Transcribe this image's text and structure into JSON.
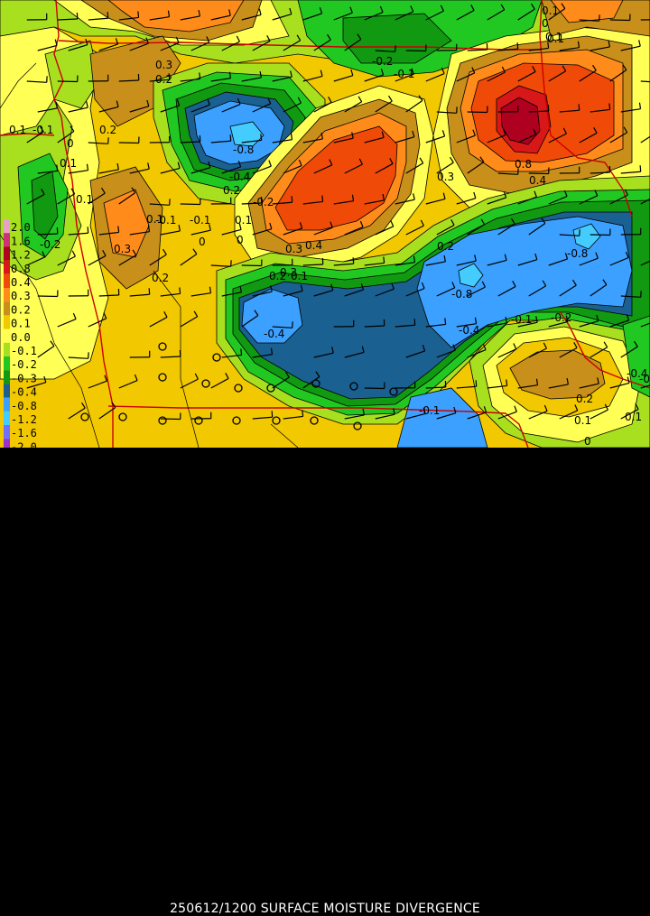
{
  "product": {
    "caption": "250612/1200 SURFACE MOISTURE DIVERGENCE"
  },
  "legend": {
    "entries": [
      {
        "label": "2.0",
        "color": "#e8a0c8"
      },
      {
        "label": "1.6",
        "color": "#cc3377"
      },
      {
        "label": "1.2",
        "color": "#b00020"
      },
      {
        "label": "0.8",
        "color": "#d81818"
      },
      {
        "label": "0.4",
        "color": "#f04a08"
      },
      {
        "label": "0.3",
        "color": "#ff8c1a"
      },
      {
        "label": "0.2",
        "color": "#c8901a"
      },
      {
        "label": "0.1",
        "color": "#f2c800"
      },
      {
        "label": "0.0",
        "color": "#ffff55"
      },
      {
        "label": "-0.1",
        "color": "#a8e020"
      },
      {
        "label": "-0.2",
        "color": "#22c822"
      },
      {
        "label": "-0.3",
        "color": "#119911"
      },
      {
        "label": "-0.4",
        "color": "#1a6090"
      },
      {
        "label": "-0.8",
        "color": "#3ba0ff"
      },
      {
        "label": "-1.2",
        "color": "#44ccff"
      },
      {
        "label": "-1.6",
        "color": "#7070ff"
      },
      {
        "label": "-2.0",
        "color": "#9933cc"
      }
    ]
  },
  "contour_labels": [
    {
      "text": "0.1"
    },
    {
      "text": "0.3"
    },
    {
      "text": "0.2"
    },
    {
      "text": "-0.2"
    },
    {
      "text": "-0.1"
    },
    {
      "text": "0.1"
    },
    {
      "text": "-0.1"
    },
    {
      "text": "0"
    },
    {
      "text": "0.1"
    },
    {
      "text": "0.1"
    },
    {
      "text": "0.2"
    },
    {
      "text": "-0.8"
    },
    {
      "text": "-0.4"
    },
    {
      "text": "-0.2"
    },
    {
      "text": "0.2"
    },
    {
      "text": "0.1"
    },
    {
      "text": "-0.1"
    },
    {
      "text": "-0.1"
    },
    {
      "text": "0"
    },
    {
      "text": "0"
    },
    {
      "text": "0.3"
    },
    {
      "text": "0.4"
    },
    {
      "text": "0.8"
    },
    {
      "text": "0.4"
    },
    {
      "text": "0.3"
    },
    {
      "text": "0.2"
    },
    {
      "text": "0.1"
    },
    {
      "text": "-0.2"
    },
    {
      "text": "0.3"
    },
    {
      "text": "0.2"
    },
    {
      "text": "0.3"
    },
    {
      "text": "0.1"
    },
    {
      "text": "0.2"
    },
    {
      "text": "-0.8"
    },
    {
      "text": "-0.8"
    },
    {
      "text": "-0.4"
    },
    {
      "text": "-0.1"
    },
    {
      "text": "-0.2"
    },
    {
      "text": "-0.4"
    },
    {
      "text": "0.2"
    },
    {
      "text": "0.1"
    },
    {
      "text": "0"
    },
    {
      "text": "-0.1"
    },
    {
      "text": "0.1"
    },
    {
      "text": "-0.2"
    },
    {
      "text": "-0.4"
    },
    {
      "text": "0.1"
    },
    {
      "text": "0"
    },
    {
      "text": "0.1"
    }
  ]
}
